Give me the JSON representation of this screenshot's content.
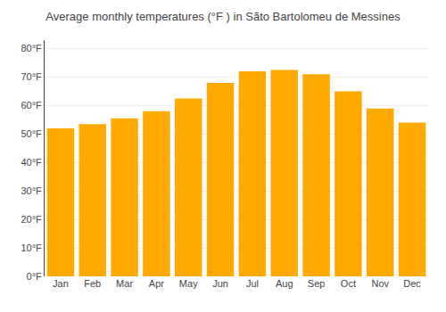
{
  "chart_data": {
    "type": "bar",
    "title": "Average monthly temperatures (°F ) in Sãto Bartolomeu de Messines",
    "categories": [
      "Jan",
      "Feb",
      "Mar",
      "Apr",
      "May",
      "Jun",
      "Jul",
      "Aug",
      "Sep",
      "Oct",
      "Nov",
      "Dec"
    ],
    "values": [
      52,
      53.5,
      55.5,
      58,
      62.5,
      68,
      72,
      72.5,
      71,
      65,
      59,
      54
    ],
    "color": "#FFAA00",
    "ylim": [
      0,
      83
    ],
    "yticks": [
      {
        "value": 0,
        "label": "0°F"
      },
      {
        "value": 10,
        "label": "10°F"
      },
      {
        "value": 20,
        "label": "20°F"
      },
      {
        "value": 30,
        "label": "30°F"
      },
      {
        "value": 40,
        "label": "40°F"
      },
      {
        "value": 50,
        "label": "50°F"
      },
      {
        "value": 60,
        "label": "60°F"
      },
      {
        "value": 70,
        "label": "70°F"
      },
      {
        "value": 80,
        "label": "80°F"
      }
    ],
    "grid": true
  }
}
